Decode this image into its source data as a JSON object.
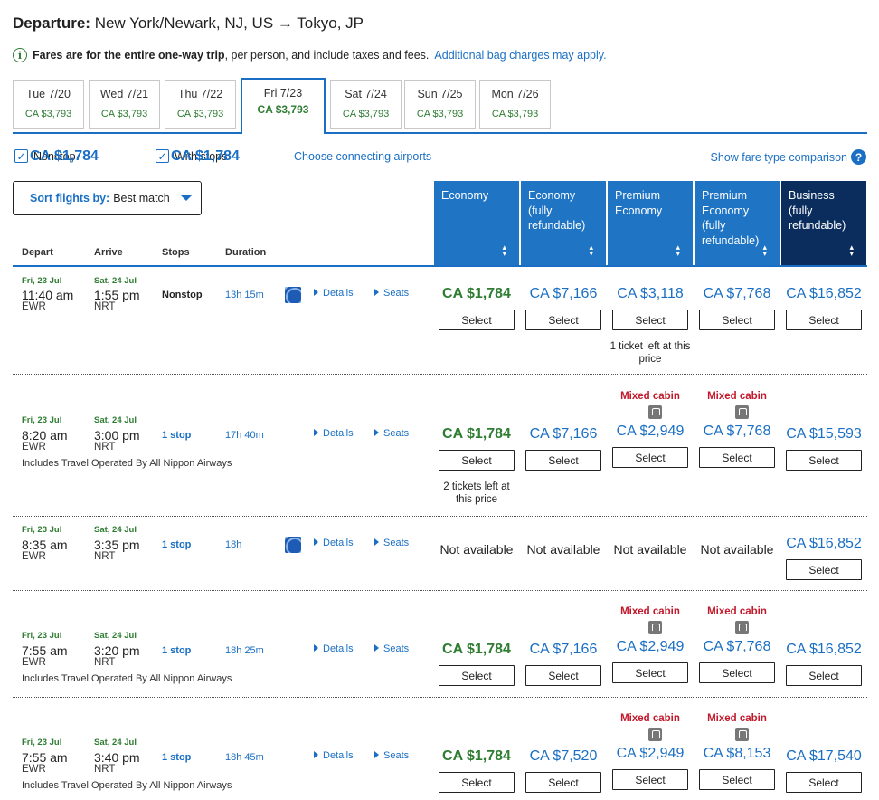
{
  "header": {
    "label": "Departure:",
    "route": "New York/Newark, NJ, US → Tokyo, JP"
  },
  "notice": {
    "bold": "Fares are for the entire one-way trip",
    "rest": ", per person, and include taxes and fees.",
    "link": "Additional bag charges may apply."
  },
  "date_tabs": [
    {
      "day": "Tue 7/20",
      "price": "CA $3,793"
    },
    {
      "day": "Wed 7/21",
      "price": "CA $3,793"
    },
    {
      "day": "Thu 7/22",
      "price": "CA $3,793"
    },
    {
      "day": "Fri 7/23",
      "price": "CA $3,793"
    },
    {
      "day": "Sat 7/24",
      "price": "CA $3,793"
    },
    {
      "day": "Sun 7/25",
      "price": "CA $3,793"
    },
    {
      "day": "Mon 7/26",
      "price": "CA $3,793"
    }
  ],
  "filters": {
    "nonstop_label": "Nonstop",
    "nonstop_price": "CA $1,784",
    "stops_label": "With stops",
    "stops_price": "CA $1,784",
    "connecting_link": "Choose connecting airports",
    "fare_compare_link": "Show fare type comparison"
  },
  "sort": {
    "label": "Sort flights by:",
    "value": "Best match"
  },
  "columns": {
    "depart": "Depart",
    "arrive": "Arrive",
    "stops": "Stops",
    "duration": "Duration"
  },
  "fare_types": [
    "Economy",
    "Economy (fully refundable)",
    "Premium Economy",
    "Premium Economy (fully refundable)",
    "Business (fully refundable)"
  ],
  "labels": {
    "details": "Details",
    "seats": "Seats",
    "select": "Select",
    "not_available": "Not available",
    "mixed_cabin": "Mixed cabin"
  },
  "flights": [
    {
      "dep_date": "Fri, 23 Jul",
      "dep_time": "11:40 am",
      "dep_apt": "EWR",
      "arr_date": "Sat, 24 Jul",
      "arr_time": "1:55 pm",
      "arr_apt": "NRT",
      "stops": "Nonstop",
      "duration": "13h 15m",
      "fares": [
        "CA $1,784",
        "CA $7,166",
        "CA $3,118",
        "CA $7,768",
        "CA $16,852"
      ],
      "note": "1 ticket left at this price"
    },
    {
      "dep_date": "Fri, 23 Jul",
      "dep_time": "8:20 am",
      "dep_apt": "EWR",
      "arr_date": "Sat, 24 Jul",
      "arr_time": "3:00 pm",
      "arr_apt": "NRT",
      "stops": "1 stop",
      "duration": "17h 40m",
      "operated": "Includes Travel Operated By All Nippon Airways",
      "fares": [
        "CA $1,784",
        "CA $7,166",
        "CA $2,949",
        "CA $7,768",
        "CA $15,593"
      ],
      "note": "2 tickets left at this price"
    },
    {
      "dep_date": "Fri, 23 Jul",
      "dep_time": "8:35 am",
      "dep_apt": "EWR",
      "arr_date": "Sat, 24 Jul",
      "arr_time": "3:35 pm",
      "arr_apt": "NRT",
      "stops": "1 stop",
      "duration": "18h",
      "fares": [
        "",
        "",
        "",
        "",
        "CA $16,852"
      ]
    },
    {
      "dep_date": "Fri, 23 Jul",
      "dep_time": "7:55 am",
      "dep_apt": "EWR",
      "arr_date": "Sat, 24 Jul",
      "arr_time": "3:20 pm",
      "arr_apt": "NRT",
      "stops": "1 stop",
      "duration": "18h 25m",
      "operated": "Includes Travel Operated By All Nippon Airways",
      "fares": [
        "CA $1,784",
        "CA $7,166",
        "CA $2,949",
        "CA $7,768",
        "CA $16,852"
      ]
    },
    {
      "dep_date": "Fri, 23 Jul",
      "dep_time": "7:55 am",
      "dep_apt": "EWR",
      "arr_date": "Sat, 24 Jul",
      "arr_time": "3:40 pm",
      "arr_apt": "NRT",
      "stops": "1 stop",
      "duration": "18h 45m",
      "operated": "Includes Travel Operated By All Nippon Airways",
      "fares": [
        "CA $1,784",
        "CA $7,520",
        "CA $2,949",
        "CA $8,153",
        "CA $17,540"
      ]
    }
  ]
}
